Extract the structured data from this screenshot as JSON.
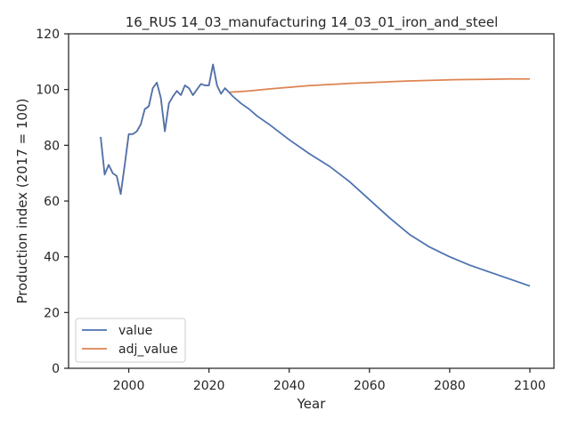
{
  "chart_data": {
    "type": "line",
    "title": "16_RUS 14_03_manufacturing 14_03_01_iron_and_steel",
    "xlabel": "Year",
    "ylabel": "Production index (2017 = 100)",
    "xlim": [
      1985,
      2106
    ],
    "ylim": [
      0,
      120
    ],
    "xticks": [
      2000,
      2020,
      2040,
      2060,
      2080,
      2100
    ],
    "yticks": [
      0,
      20,
      40,
      60,
      80,
      100,
      120
    ],
    "grid": false,
    "legend_position": "lower-left",
    "series": [
      {
        "name": "value",
        "color": "#4c72b0",
        "points": [
          [
            1993,
            83
          ],
          [
            1994,
            69.5
          ],
          [
            1995,
            73
          ],
          [
            1996,
            70
          ],
          [
            1997,
            69
          ],
          [
            1998,
            62.5
          ],
          [
            1999,
            73
          ],
          [
            2000,
            84
          ],
          [
            2001,
            84
          ],
          [
            2002,
            85
          ],
          [
            2003,
            87.5
          ],
          [
            2004,
            93
          ],
          [
            2005,
            94
          ],
          [
            2006,
            100.5
          ],
          [
            2007,
            102.5
          ],
          [
            2008,
            97
          ],
          [
            2009,
            85
          ],
          [
            2010,
            95
          ],
          [
            2011,
            97.5
          ],
          [
            2012,
            99.5
          ],
          [
            2013,
            98
          ],
          [
            2014,
            101.5
          ],
          [
            2015,
            100.5
          ],
          [
            2016,
            98
          ],
          [
            2017,
            100
          ],
          [
            2018,
            102
          ],
          [
            2019,
            101.5
          ],
          [
            2020,
            101.5
          ],
          [
            2021,
            109
          ],
          [
            2022,
            101.5
          ],
          [
            2023,
            98.5
          ],
          [
            2024,
            100.5
          ],
          [
            2025,
            99
          ],
          [
            2026,
            97.5
          ],
          [
            2028,
            95
          ],
          [
            2030,
            93
          ],
          [
            2032,
            90.5
          ],
          [
            2035,
            87.5
          ],
          [
            2040,
            82
          ],
          [
            2045,
            77
          ],
          [
            2050,
            72.5
          ],
          [
            2055,
            67
          ],
          [
            2060,
            60.5
          ],
          [
            2065,
            54
          ],
          [
            2070,
            48
          ],
          [
            2075,
            43.5
          ],
          [
            2080,
            40
          ],
          [
            2085,
            37
          ],
          [
            2090,
            34.5
          ],
          [
            2095,
            32
          ],
          [
            2100,
            29.5
          ]
        ]
      },
      {
        "name": "adj_value",
        "color": "#dd8452",
        "points": [
          [
            1993,
            83
          ],
          [
            1994,
            69.5
          ],
          [
            1995,
            73
          ],
          [
            1996,
            70
          ],
          [
            1997,
            69
          ],
          [
            1998,
            62.5
          ],
          [
            1999,
            73
          ],
          [
            2000,
            84
          ],
          [
            2001,
            84
          ],
          [
            2002,
            85
          ],
          [
            2003,
            87.5
          ],
          [
            2004,
            93
          ],
          [
            2005,
            94
          ],
          [
            2006,
            100.5
          ],
          [
            2007,
            102.5
          ],
          [
            2008,
            97
          ],
          [
            2009,
            85
          ],
          [
            2010,
            95
          ],
          [
            2011,
            97.5
          ],
          [
            2012,
            99.5
          ],
          [
            2013,
            98
          ],
          [
            2014,
            101.5
          ],
          [
            2015,
            100.5
          ],
          [
            2016,
            98
          ],
          [
            2017,
            100
          ],
          [
            2018,
            102
          ],
          [
            2019,
            101.5
          ],
          [
            2020,
            101.5
          ],
          [
            2021,
            109
          ],
          [
            2022,
            101.5
          ],
          [
            2023,
            98.5
          ],
          [
            2024,
            100.5
          ],
          [
            2025,
            99
          ],
          [
            2030,
            99.5
          ],
          [
            2035,
            100.2
          ],
          [
            2040,
            100.8
          ],
          [
            2045,
            101.4
          ],
          [
            2050,
            101.8
          ],
          [
            2055,
            102.2
          ],
          [
            2060,
            102.5
          ],
          [
            2065,
            102.8
          ],
          [
            2070,
            103.1
          ],
          [
            2075,
            103.3
          ],
          [
            2080,
            103.5
          ],
          [
            2085,
            103.6
          ],
          [
            2090,
            103.7
          ],
          [
            2095,
            103.8
          ],
          [
            2100,
            103.8
          ]
        ]
      }
    ]
  }
}
